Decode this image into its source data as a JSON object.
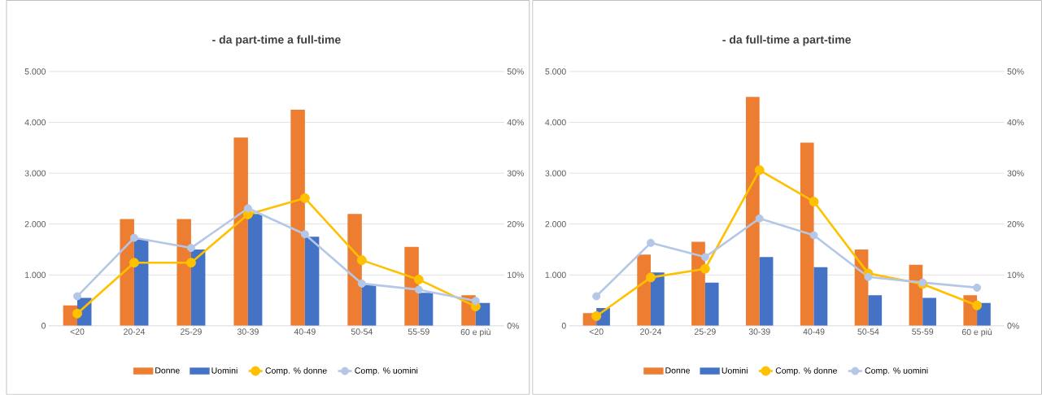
{
  "chart_data": [
    {
      "type": "bar",
      "title": "- da part-time a full-time",
      "categories": [
        "<20",
        "20-24",
        "25-29",
        "30-39",
        "40-49",
        "50-54",
        "55-59",
        "60 e più"
      ],
      "series": [
        {
          "name": "Donne",
          "color": "#ed7d31",
          "values": [
            400,
            2100,
            2100,
            3700,
            4250,
            2200,
            1550,
            600
          ]
        },
        {
          "name": "Uomini",
          "color": "#4472c4",
          "values": [
            550,
            1700,
            1500,
            2200,
            1750,
            800,
            650,
            450
          ]
        },
        {
          "name": "Comp. % donne",
          "type": "line",
          "axis": "y2",
          "color": "#ffc000",
          "marker": "circle",
          "values": [
            2.4,
            12.4,
            12.4,
            21.9,
            25.1,
            12.9,
            9.1,
            3.8
          ]
        },
        {
          "name": "Comp. % uomini",
          "type": "line",
          "axis": "y2",
          "color": "#b4c7e7",
          "marker": "circle",
          "values": [
            5.8,
            17.3,
            15.3,
            23.1,
            18.0,
            8.3,
            7.1,
            4.9
          ]
        }
      ],
      "ylim": [
        0,
        5000
      ],
      "yticks": [
        0,
        {
          "value": 1000,
          "label": "1.000"
        },
        {
          "value": 2000,
          "label": "2.000"
        },
        {
          "value": 3000,
          "label": "3.000"
        },
        {
          "value": 4000,
          "label": "4.000"
        },
        {
          "value": 5000,
          "label": "5.000"
        }
      ],
      "y2lim": [
        0,
        50
      ],
      "y2ticks": [
        {
          "value": 0,
          "label": "0%"
        },
        {
          "value": 10,
          "label": "10%"
        },
        {
          "value": 20,
          "label": "20%"
        },
        {
          "value": 30,
          "label": "30%"
        },
        {
          "value": 40,
          "label": "40%"
        },
        {
          "value": 50,
          "label": "50%"
        }
      ],
      "grid": "y",
      "legend": "bottom"
    },
    {
      "type": "bar",
      "title": "- da full-time a part-time",
      "categories": [
        "<20",
        "20-24",
        "25-29",
        "30-39",
        "40-49",
        "50-54",
        "55-59",
        "60 e più"
      ],
      "series": [
        {
          "name": "Donne",
          "color": "#ed7d31",
          "values": [
            250,
            1400,
            1650,
            4500,
            3600,
            1500,
            1200,
            600
          ]
        },
        {
          "name": "Uomini",
          "color": "#4472c4",
          "values": [
            350,
            1050,
            850,
            1350,
            1150,
            600,
            550,
            450
          ]
        },
        {
          "name": "Comp. % donne",
          "type": "line",
          "axis": "y2",
          "color": "#ffc000",
          "marker": "circle",
          "values": [
            1.9,
            9.5,
            11.2,
            30.6,
            24.4,
            10.3,
            8.2,
            4.0
          ]
        },
        {
          "name": "Comp. % uomini",
          "type": "line",
          "axis": "y2",
          "color": "#b4c7e7",
          "marker": "circle",
          "values": [
            5.8,
            16.3,
            13.5,
            21.1,
            17.8,
            9.6,
            8.5,
            7.5
          ]
        }
      ],
      "ylim": [
        0,
        5000
      ],
      "yticks": [
        0,
        {
          "value": 1000,
          "label": "1.000"
        },
        {
          "value": 2000,
          "label": "2.000"
        },
        {
          "value": 3000,
          "label": "3.000"
        },
        {
          "value": 4000,
          "label": "4.000"
        },
        {
          "value": 5000,
          "label": "5.000"
        }
      ],
      "y2lim": [
        0,
        50
      ],
      "y2ticks": [
        {
          "value": 0,
          "label": "0%"
        },
        {
          "value": 10,
          "label": "10%"
        },
        {
          "value": 20,
          "label": "20%"
        },
        {
          "value": 30,
          "label": "30%"
        },
        {
          "value": 40,
          "label": "40%"
        },
        {
          "value": 50,
          "label": "50%"
        }
      ],
      "grid": "y",
      "legend": "bottom"
    }
  ]
}
